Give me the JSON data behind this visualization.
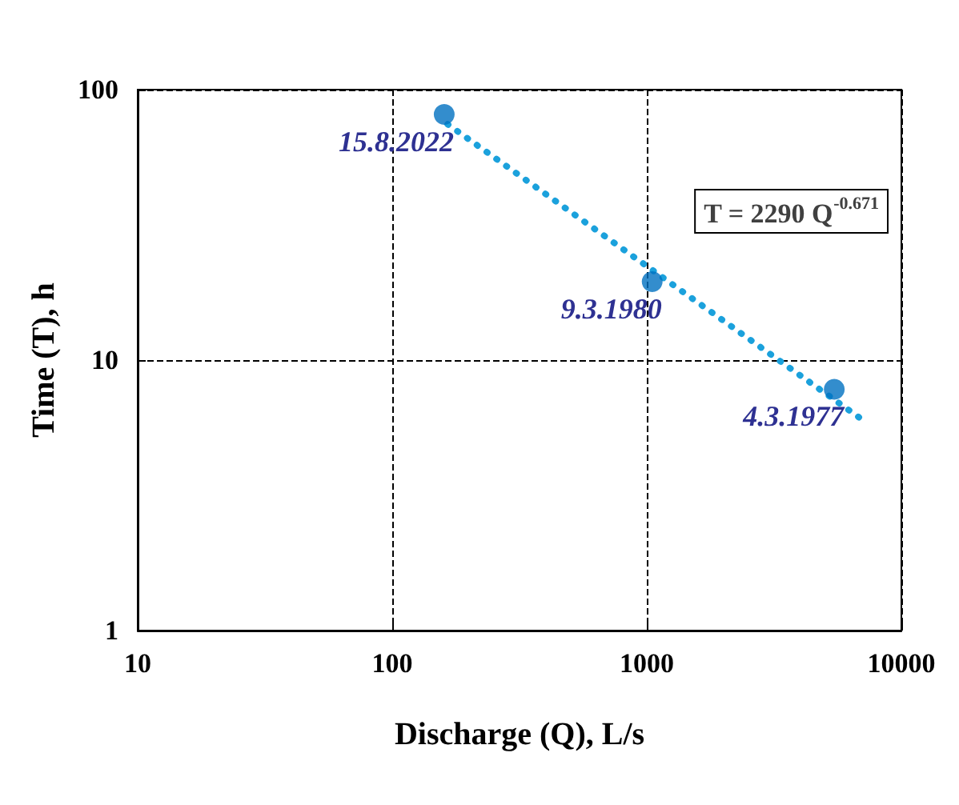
{
  "chart_data": {
    "type": "scatter",
    "xlabel": "Discharge (Q), L/s",
    "ylabel": "Time (T), h",
    "log": "xy",
    "xlim": [
      10,
      10000
    ],
    "ylim": [
      1,
      100
    ],
    "xticks": [
      10,
      100,
      1000,
      10000
    ],
    "yticks": [
      1,
      10,
      100
    ],
    "grid": true,
    "marker": "circle",
    "series": [
      {
        "color": "#0070c0",
        "x": [
          160,
          1050,
          5450
        ],
        "values": [
          81,
          19.5,
          7.8
        ]
      },
      {
        "type": "line",
        "color": "#1ba1dc",
        "line_style": "dotted",
        "marker": "none",
        "x": [
          165,
          7240
        ],
        "values": [
          74.5,
          5.9
        ]
      }
    ],
    "annotations": [
      {
        "text": "15.8.2022",
        "x": 160,
        "y": 81
      },
      {
        "text": "9.3.1980",
        "x": 1050,
        "y": 19.5
      },
      {
        "text": "4.3.1977",
        "x": 5450,
        "y": 7.8
      },
      "T = 2290 Q$^{-0.671}$"
    ]
  }
}
